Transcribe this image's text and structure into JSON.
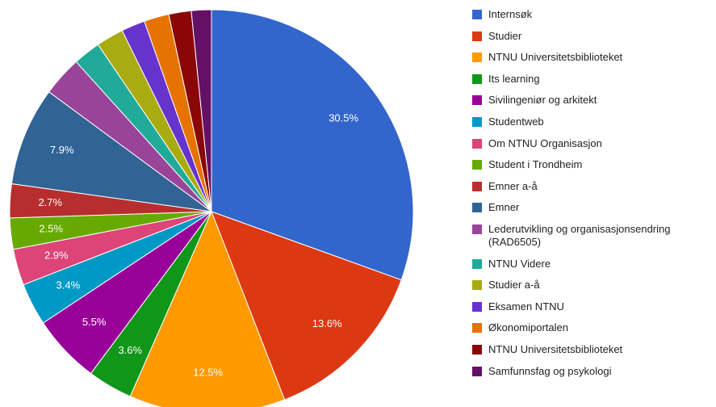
{
  "chart_data": {
    "type": "pie",
    "categories": [
      "Internsøk",
      "Studier",
      "NTNU Universitetsbiblioteket",
      "Its learning",
      "Sivilingeniør og arkitekt",
      "Studentweb",
      "Om NTNU Organisasjon",
      "Student i Trondheim",
      "Emner a-å",
      "Emner",
      "Lederutvikling og organisasjonsendring (RAD6505)",
      "NTNU Videre",
      "Studier a-å",
      "Eksamen NTNU",
      "Økonomiportalen",
      "NTNU Universitetsbiblioteket",
      "Samfunnsfag og psykologi"
    ],
    "values": [
      30.5,
      13.6,
      12.5,
      3.6,
      5.5,
      3.4,
      2.9,
      2.5,
      2.7,
      7.9,
      3.2,
      2.2,
      2.2,
      1.9,
      2.0,
      1.8,
      1.6
    ],
    "value_labels": [
      "30.5%",
      "13.6%",
      "12.5%",
      "3.6%",
      "5.5%",
      "3.4%",
      "2.9%",
      "2.5%",
      "2.7%",
      "7.9%",
      null,
      null,
      null,
      null,
      null,
      null,
      null
    ],
    "colors": [
      "#3366cc",
      "#dc3912",
      "#ff9900",
      "#109618",
      "#990099",
      "#0099c6",
      "#dd4477",
      "#66aa00",
      "#b82e2e",
      "#316395",
      "#994499",
      "#22aa99",
      "#aaaa11",
      "#6633cc",
      "#e67300",
      "#8b0707",
      "#651067"
    ],
    "legend": "right"
  }
}
